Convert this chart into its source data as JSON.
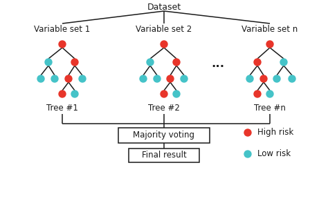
{
  "background_color": "#ffffff",
  "red_color": "#e8352a",
  "cyan_color": "#45c3c8",
  "line_color": "#1a1a1a",
  "text_color": "#1a1a1a",
  "dataset_label": "Dataset",
  "var_labels": [
    "Variable set 1",
    "Variable set 2",
    "Variable set n"
  ],
  "tree_labels": [
    "Tree #1",
    "Tree #2",
    "Tree #n"
  ],
  "dots_label": "...",
  "box1_label": "Majority voting",
  "box2_label": "Final result",
  "legend_high": "High risk",
  "legend_low": "Low risk",
  "fig_w": 4.74,
  "fig_h": 3.04,
  "dpi": 100
}
